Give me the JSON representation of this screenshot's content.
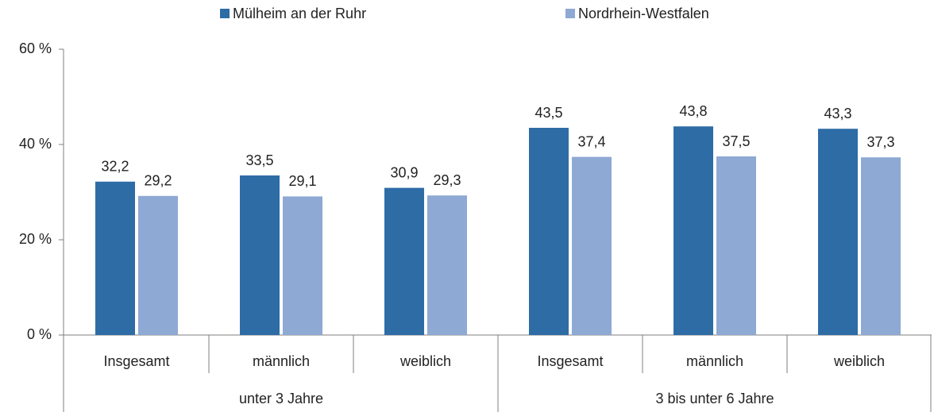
{
  "chart_data": {
    "type": "bar",
    "groups": [
      {
        "name": "unter 3 Jahre",
        "categories": [
          "Insgesamt",
          "männlich",
          "weiblich"
        ]
      },
      {
        "name": "3 bis unter 6 Jahre",
        "categories": [
          "Insgesamt",
          "männlich",
          "weiblich"
        ]
      }
    ],
    "series": [
      {
        "name": "Mülheim an der Ruhr",
        "color": "#2e6ca6",
        "values": [
          32.2,
          33.5,
          30.9,
          43.5,
          43.8,
          43.3
        ],
        "value_labels": [
          "32,2",
          "33,5",
          "30,9",
          "43,5",
          "43,8",
          "43,3"
        ]
      },
      {
        "name": "Nordrhein-Westfalen",
        "color": "#8ea9d3",
        "values": [
          29.2,
          29.1,
          29.3,
          37.4,
          37.5,
          37.3
        ],
        "value_labels": [
          "29,2",
          "29,1",
          "29,3",
          "37,4",
          "37,5",
          "37,3"
        ]
      }
    ],
    "ylim": [
      0,
      60
    ],
    "yticks": [
      {
        "value": 0,
        "label": "0 %"
      },
      {
        "value": 20,
        "label": "20 %"
      },
      {
        "value": 40,
        "label": "40 %"
      },
      {
        "value": 60,
        "label": "60 %"
      }
    ],
    "grid": false,
    "legend": "top"
  }
}
